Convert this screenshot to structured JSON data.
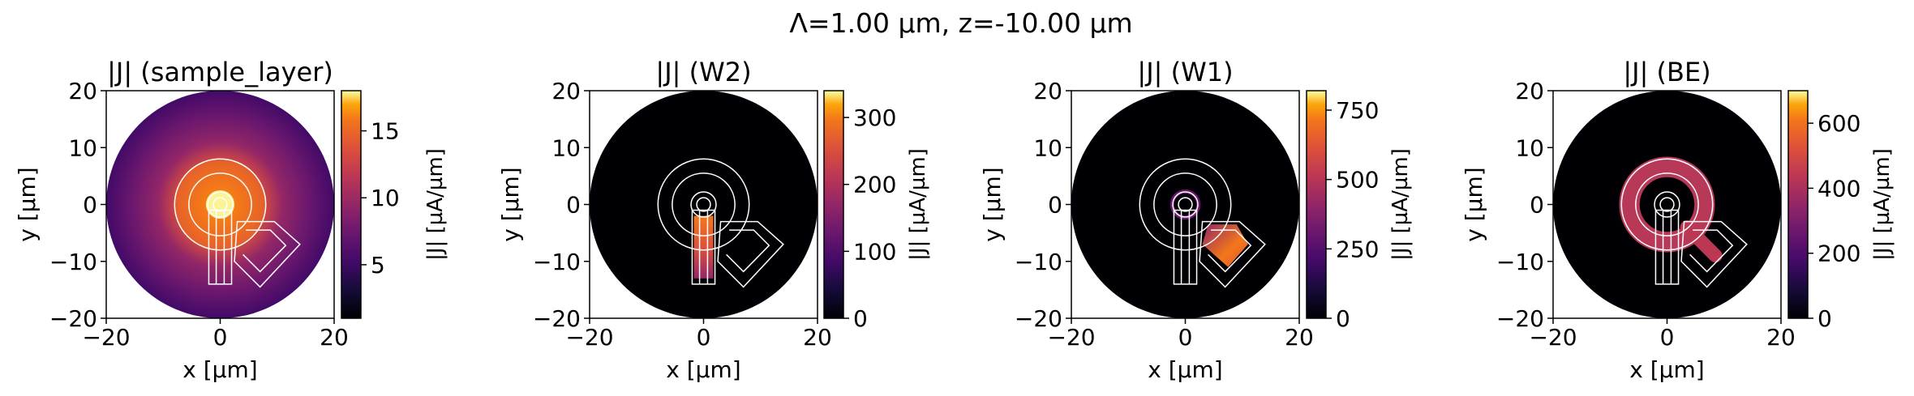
{
  "figure": {
    "suptitle": "Λ=1.00 µm, z=-10.00 µm"
  },
  "chart_data": [
    {
      "type": "heatmap",
      "title": "|J| (sample_layer)",
      "xlabel": "x [µm]",
      "ylabel": "y [µm]",
      "xlim": [
        -20,
        20
      ],
      "ylim": [
        -20,
        20
      ],
      "xticks": [
        "−20",
        "0",
        "20"
      ],
      "yticks": [
        "20",
        "10",
        "0",
        "−10",
        "−20"
      ],
      "colorbar": {
        "label": "|J| [µA/µm]",
        "range": [
          1,
          18
        ],
        "ticks": [
          5,
          10,
          15
        ],
        "colormap": "inferno"
      }
    },
    {
      "type": "heatmap",
      "title": "|J| (W2)",
      "xlabel": "x [µm]",
      "ylabel": "y [µm]",
      "xlim": [
        -20,
        20
      ],
      "ylim": [
        -20,
        20
      ],
      "xticks": [
        "−20",
        "0",
        "20"
      ],
      "yticks": [
        "20",
        "10",
        "0",
        "−10",
        "−20"
      ],
      "colorbar": {
        "label": "|J| [µA/µm]",
        "range": [
          0,
          340
        ],
        "ticks": [
          0,
          100,
          200,
          300
        ],
        "colormap": "inferno"
      }
    },
    {
      "type": "heatmap",
      "title": "|J| (W1)",
      "xlabel": "x [µm]",
      "ylabel": "y [µm]",
      "xlim": [
        -20,
        20
      ],
      "ylim": [
        -20,
        20
      ],
      "xticks": [
        "−20",
        "0",
        "20"
      ],
      "yticks": [
        "20",
        "10",
        "0",
        "−10",
        "−20"
      ],
      "colorbar": {
        "label": "|J| [µA/µm]",
        "range": [
          0,
          820
        ],
        "ticks": [
          0,
          250,
          500,
          750
        ],
        "colormap": "inferno"
      }
    },
    {
      "type": "heatmap",
      "title": "|J| (BE)",
      "xlabel": "x [µm]",
      "ylabel": "y [µm]",
      "xlim": [
        -20,
        20
      ],
      "ylim": [
        -20,
        20
      ],
      "xticks": [
        "−20",
        "0",
        "20"
      ],
      "yticks": [
        "20",
        "10",
        "0",
        "−10",
        "−20"
      ],
      "colorbar": {
        "label": "|J| [µA/µm]",
        "range": [
          0,
          700
        ],
        "ticks": [
          0,
          200,
          400,
          600
        ],
        "colormap": "inferno"
      }
    }
  ]
}
